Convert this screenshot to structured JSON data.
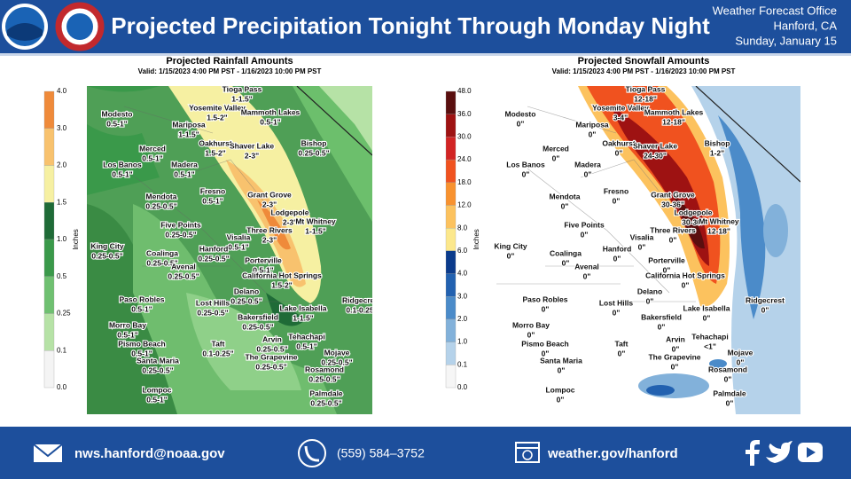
{
  "header": {
    "title": "Projected Precipitation Tonight Through Monday Night",
    "office": [
      "Weather Forecast Office",
      "Hanford, CA",
      "Sunday, January 15"
    ]
  },
  "panels": [
    {
      "title": "Projected Rainfall Amounts",
      "valid": "Valid: 1/15/2023 4:00 PM PST - 1/16/2023 10:00 PM PST",
      "legend": {
        "label": "Inches",
        "ticks": [
          "4.0",
          "3.0",
          "2.0",
          "1.5",
          "1.0",
          "0.5",
          "0.25",
          "0.1",
          "0.0"
        ],
        "colors": [
          "#ef8a3a",
          "#f8c26e",
          "#f6f0a2",
          "#1f6b37",
          "#3a994a",
          "#6fc071",
          "#b6e2a6",
          "#f4f4f4"
        ]
      },
      "places": [
        {
          "name": "Tioga Pass",
          "amount": "1-1.5\""
        },
        {
          "name": "Modesto",
          "amount": "0.5-1\""
        },
        {
          "name": "Yosemite Valley",
          "amount": "1.5-2\""
        },
        {
          "name": "Mammoth Lakes",
          "amount": "0.5-1\""
        },
        {
          "name": "Mariposa",
          "amount": "1-1.5\""
        },
        {
          "name": "Merced",
          "amount": "0.5-1\""
        },
        {
          "name": "Oakhurst",
          "amount": "1.5-2\""
        },
        {
          "name": "Shaver Lake",
          "amount": "2-3\""
        },
        {
          "name": "Bishop",
          "amount": "0.25-0.5\""
        },
        {
          "name": "Los Banos",
          "amount": "0.5-1\""
        },
        {
          "name": "Madera",
          "amount": "0.5-1\""
        },
        {
          "name": "Grant Grove",
          "amount": "2-3\""
        },
        {
          "name": "Fresno",
          "amount": "0.5-1\""
        },
        {
          "name": "Mendota",
          "amount": "0.25-0.5\""
        },
        {
          "name": "Lodgepole",
          "amount": "2-3\""
        },
        {
          "name": "Mt Whitney",
          "amount": "1-1.5\""
        },
        {
          "name": "Five Points",
          "amount": "0.25-0.5\""
        },
        {
          "name": "Three Rivers",
          "amount": "2-3\""
        },
        {
          "name": "Visalia",
          "amount": "0.5-1\""
        },
        {
          "name": "King City",
          "amount": "0.25-0.5\""
        },
        {
          "name": "Coalinga",
          "amount": "0.25-0.5\""
        },
        {
          "name": "Hanford",
          "amount": "0.25-0.5\""
        },
        {
          "name": "Porterville",
          "amount": "0.5-1\""
        },
        {
          "name": "Avenal",
          "amount": "0.25-0.5\""
        },
        {
          "name": "California Hot Springs",
          "amount": "1.5-2\""
        },
        {
          "name": "Delano",
          "amount": "0.25-0.5\""
        },
        {
          "name": "Paso Robles",
          "amount": "0.5-1\""
        },
        {
          "name": "Lost Hills",
          "amount": "0.25-0.5\""
        },
        {
          "name": "Lake Isabella",
          "amount": "1-1.5\""
        },
        {
          "name": "Ridgecrest",
          "amount": "0.1-0.25\""
        },
        {
          "name": "Bakersfield",
          "amount": "0.25-0.5\""
        },
        {
          "name": "Morro Bay",
          "amount": "0.5-1\""
        },
        {
          "name": "Taft",
          "amount": "0.1-0.25\""
        },
        {
          "name": "Arvin",
          "amount": "0.25-0.5\""
        },
        {
          "name": "Tehachapi",
          "amount": "0.5-1\""
        },
        {
          "name": "Mojave",
          "amount": "0.25-0.5\""
        },
        {
          "name": "Pismo Beach",
          "amount": "0.5-1\""
        },
        {
          "name": "The Grapevine",
          "amount": "0.25-0.5\""
        },
        {
          "name": "Santa Maria",
          "amount": "0.25-0.5\""
        },
        {
          "name": "Rosamond",
          "amount": "0.25-0.5\""
        },
        {
          "name": "Lompoc",
          "amount": "0.5-1\""
        },
        {
          "name": "Palmdale",
          "amount": "0.25-0.5\""
        }
      ]
    },
    {
      "title": "Projected Snowfall Amounts",
      "valid": "Valid: 1/15/2023 4:00 PM PST - 1/16/2023 10:00 PM PST",
      "legend": {
        "label": "Inches",
        "ticks": [
          "48.0",
          "36.0",
          "30.0",
          "24.0",
          "18.0",
          "12.0",
          "8.0",
          "6.0",
          "4.0",
          "3.0",
          "2.0",
          "1.0",
          "0.1",
          "0.0"
        ],
        "colors": [
          "#5a0f0f",
          "#9e1212",
          "#d22424",
          "#f0521f",
          "#f8922f",
          "#fcc25e",
          "#fce88c",
          "#0b3b8c",
          "#2261b0",
          "#4b8bc9",
          "#82b1da",
          "#b5d2ea",
          "#f6f6f6"
        ]
      },
      "places": [
        {
          "name": "Tioga Pass",
          "amount": "12-18\""
        },
        {
          "name": "Modesto",
          "amount": "0\""
        },
        {
          "name": "Yosemite Valley",
          "amount": "3-4\""
        },
        {
          "name": "Mammoth Lakes",
          "amount": "12-18\""
        },
        {
          "name": "Mariposa",
          "amount": "0\""
        },
        {
          "name": "Merced",
          "amount": "0\""
        },
        {
          "name": "Oakhurst",
          "amount": "0\""
        },
        {
          "name": "Shaver Lake",
          "amount": "24-30\""
        },
        {
          "name": "Bishop",
          "amount": "1-2\""
        },
        {
          "name": "Los Banos",
          "amount": "0\""
        },
        {
          "name": "Madera",
          "amount": "0\""
        },
        {
          "name": "Grant Grove",
          "amount": "30-36\""
        },
        {
          "name": "Fresno",
          "amount": "0\""
        },
        {
          "name": "Mendota",
          "amount": "0\""
        },
        {
          "name": "Lodgepole",
          "amount": "30-36\""
        },
        {
          "name": "Mt Whitney",
          "amount": "12-18\""
        },
        {
          "name": "Five Points",
          "amount": "0\""
        },
        {
          "name": "Three Rivers",
          "amount": "0\""
        },
        {
          "name": "Visalia",
          "amount": "0\""
        },
        {
          "name": "King City",
          "amount": "0\""
        },
        {
          "name": "Coalinga",
          "amount": "0\""
        },
        {
          "name": "Hanford",
          "amount": "0\""
        },
        {
          "name": "Porterville",
          "amount": "0\""
        },
        {
          "name": "Avenal",
          "amount": "0\""
        },
        {
          "name": "California Hot Springs",
          "amount": "0\""
        },
        {
          "name": "Delano",
          "amount": "0\""
        },
        {
          "name": "Paso Robles",
          "amount": "0\""
        },
        {
          "name": "Lost Hills",
          "amount": "0\""
        },
        {
          "name": "Lake Isabella",
          "amount": "0\""
        },
        {
          "name": "Ridgecrest",
          "amount": "0\""
        },
        {
          "name": "Bakersfield",
          "amount": "0\""
        },
        {
          "name": "Morro Bay",
          "amount": "0\""
        },
        {
          "name": "Taft",
          "amount": "0\""
        },
        {
          "name": "Arvin",
          "amount": "0\""
        },
        {
          "name": "Tehachapi",
          "amount": "<1\""
        },
        {
          "name": "Mojave",
          "amount": "0\""
        },
        {
          "name": "Pismo Beach",
          "amount": "0\""
        },
        {
          "name": "The Grapevine",
          "amount": "0\""
        },
        {
          "name": "Santa Maria",
          "amount": "0\""
        },
        {
          "name": "Rosamond",
          "amount": "0\""
        },
        {
          "name": "Lompoc",
          "amount": "0\""
        },
        {
          "name": "Palmdale",
          "amount": "0\""
        }
      ]
    }
  ],
  "footer": {
    "email": "nws.hanford@noaa.gov",
    "phone": "(559)  584–3752",
    "website": "weather.gov/hanford"
  }
}
